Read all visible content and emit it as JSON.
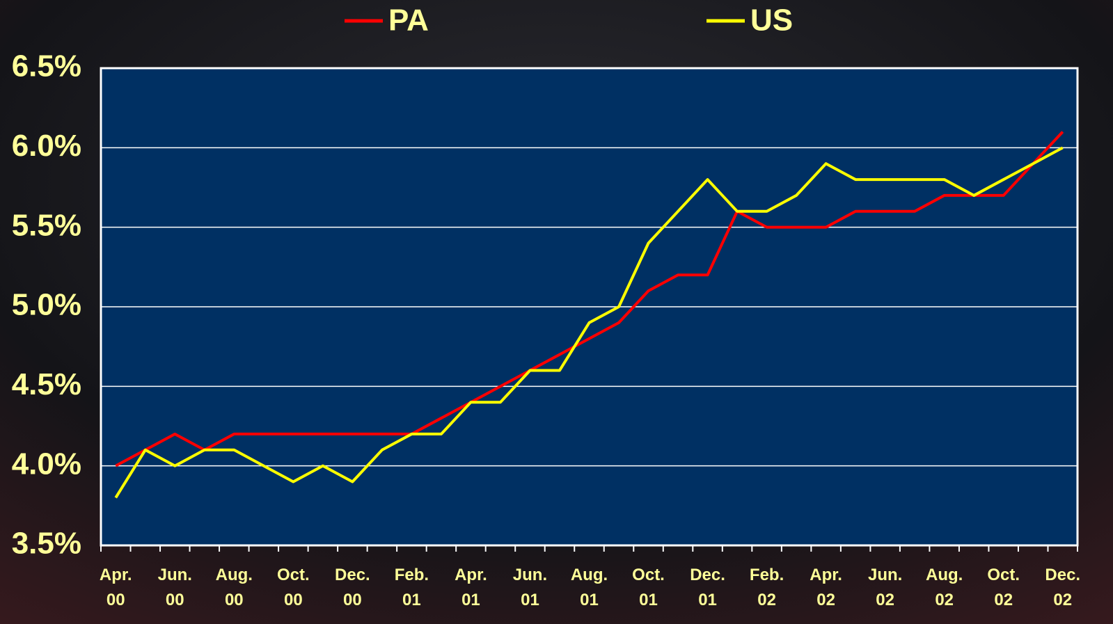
{
  "chart_data": {
    "type": "line",
    "categories": [
      "Apr. 00",
      null,
      "Jun. 00",
      null,
      "Aug. 00",
      null,
      "Oct. 00",
      null,
      "Dec. 00",
      null,
      "Feb. 01",
      null,
      "Apr. 01",
      null,
      "Jun. 01",
      null,
      "Aug. 01",
      null,
      "Oct. 01",
      null,
      "Dec. 01",
      null,
      "Feb. 02",
      null,
      "Apr. 02",
      null,
      "Jun. 02",
      null,
      "Aug. 02",
      null,
      "Oct. 02",
      null,
      "Dec. 02"
    ],
    "series": [
      {
        "name": "PA",
        "color": "#ff0000",
        "values": [
          4.0,
          4.1,
          4.2,
          4.1,
          4.2,
          4.2,
          4.2,
          4.2,
          4.2,
          4.2,
          4.2,
          4.3,
          4.4,
          4.5,
          4.6,
          4.7,
          4.8,
          4.9,
          5.1,
          5.2,
          5.2,
          5.6,
          5.5,
          5.5,
          5.5,
          5.6,
          5.6,
          5.6,
          5.7,
          5.7,
          5.7,
          5.9,
          6.1
        ]
      },
      {
        "name": "US",
        "color": "#ffff00",
        "values": [
          3.8,
          4.1,
          4.0,
          4.1,
          4.1,
          4.0,
          3.9,
          4.0,
          3.9,
          4.1,
          4.2,
          4.2,
          4.4,
          4.4,
          4.6,
          4.6,
          4.9,
          5.0,
          5.4,
          5.6,
          5.8,
          5.6,
          5.6,
          5.7,
          5.9,
          5.8,
          5.8,
          5.8,
          5.8,
          5.7,
          5.8,
          5.9,
          6.0
        ]
      }
    ],
    "ylim": [
      3.5,
      6.5
    ],
    "yticks": [
      {
        "value": 3.5,
        "label": "3.5%"
      },
      {
        "value": 4.0,
        "label": "4.0%"
      },
      {
        "value": 4.5,
        "label": "4.5%"
      },
      {
        "value": 5.0,
        "label": "5.0%"
      },
      {
        "value": 5.5,
        "label": "5.5%"
      },
      {
        "value": 6.0,
        "label": "6.0%"
      },
      {
        "value": 6.5,
        "label": "6.5%"
      }
    ],
    "grid": true
  }
}
